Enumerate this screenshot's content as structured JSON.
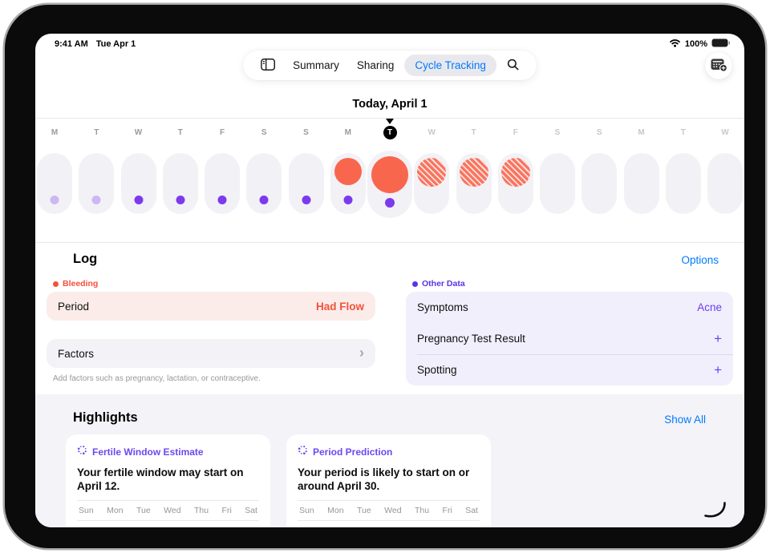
{
  "status_bar": {
    "time": "9:41 AM",
    "date": "Tue Apr 1",
    "battery_percent": "100%"
  },
  "nav": {
    "tabs": [
      {
        "label": "Summary",
        "active": false
      },
      {
        "label": "Sharing",
        "active": false
      },
      {
        "label": "Cycle Tracking",
        "active": true
      }
    ]
  },
  "calendar": {
    "title": "Today, April 1",
    "days": [
      {
        "letter": "M",
        "state": "past",
        "dot": "light",
        "circle": "none"
      },
      {
        "letter": "T",
        "state": "past",
        "dot": "light",
        "circle": "none"
      },
      {
        "letter": "W",
        "state": "past",
        "dot": "solid",
        "circle": "none"
      },
      {
        "letter": "T",
        "state": "past",
        "dot": "solid",
        "circle": "none"
      },
      {
        "letter": "F",
        "state": "past",
        "dot": "solid",
        "circle": "none"
      },
      {
        "letter": "S",
        "state": "past",
        "dot": "solid",
        "circle": "none"
      },
      {
        "letter": "S",
        "state": "past",
        "dot": "solid",
        "circle": "none"
      },
      {
        "letter": "M",
        "state": "past",
        "dot": "solid",
        "circle": "solid"
      },
      {
        "letter": "T",
        "state": "today",
        "dot": "solid",
        "circle": "solid"
      },
      {
        "letter": "W",
        "state": "future",
        "dot": "none",
        "circle": "hatched"
      },
      {
        "letter": "T",
        "state": "future",
        "dot": "none",
        "circle": "hatched"
      },
      {
        "letter": "F",
        "state": "future",
        "dot": "none",
        "circle": "hatched"
      },
      {
        "letter": "S",
        "state": "future",
        "dot": "none",
        "circle": "none"
      },
      {
        "letter": "S",
        "state": "future",
        "dot": "none",
        "circle": "none"
      },
      {
        "letter": "M",
        "state": "future",
        "dot": "none",
        "circle": "none"
      },
      {
        "letter": "T",
        "state": "future",
        "dot": "none",
        "circle": "none"
      },
      {
        "letter": "W",
        "state": "future",
        "dot": "none",
        "circle": "none"
      }
    ]
  },
  "log": {
    "heading": "Log",
    "options_label": "Options",
    "bleeding_label": "Bleeding",
    "period": {
      "label": "Period",
      "value": "Had Flow"
    },
    "factors": {
      "label": "Factors"
    },
    "factors_hint": "Add factors such as pregnancy, lactation, or contraceptive."
  },
  "other_data": {
    "label": "Other Data",
    "rows": [
      {
        "label": "Symptoms",
        "value": "Acne",
        "type": "text"
      },
      {
        "label": "Pregnancy Test Result",
        "value": "+",
        "type": "add"
      },
      {
        "label": "Spotting",
        "value": "+",
        "type": "add"
      }
    ]
  },
  "highlights": {
    "heading": "Highlights",
    "show_all_label": "Show All",
    "week_days": [
      "Sun",
      "Mon",
      "Tue",
      "Wed",
      "Thu",
      "Fri",
      "Sat"
    ],
    "cards": [
      {
        "title": "Fertile Window Estimate",
        "body": "Your fertile window may start on April 12."
      },
      {
        "title": "Period Prediction",
        "body": "Your period is likely to start on or around April 30."
      }
    ]
  },
  "colors": {
    "accent_blue": "#007AFF",
    "period_red": "#F9664E",
    "bleeding_red": "#F4513C",
    "purple_accent": "#6A3DF5",
    "dot_purple": "#7C3AED",
    "dot_light_purple": "#CBB8F3",
    "cell_gray": "#F2F1F6",
    "lavender_card": "#F1EFFB",
    "pink_row": "#FBECE9"
  }
}
